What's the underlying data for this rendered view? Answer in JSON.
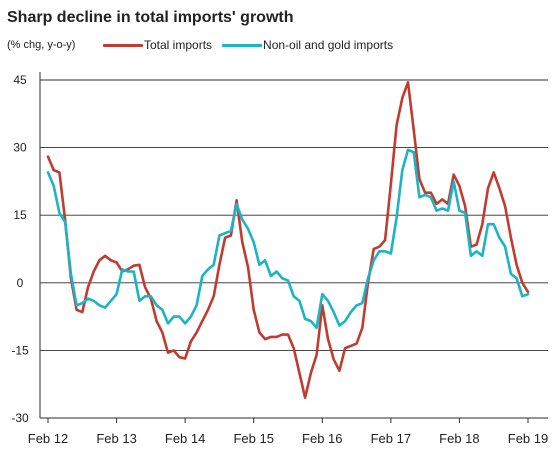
{
  "chart_data": {
    "type": "line",
    "title": "Sharp decline in total imports' growth",
    "subtitle": "(% chg, y-o-y)",
    "ylim": [
      -30,
      45
    ],
    "yticks": [
      45,
      30,
      15,
      0,
      -15,
      -30
    ],
    "xticks": [
      "Feb 12",
      "Feb 13",
      "Feb 14",
      "Feb 15",
      "Feb 16",
      "Feb 17",
      "Feb 18",
      "Feb 19"
    ],
    "grid": true,
    "legend": "top",
    "x": [
      "Feb 12",
      "Mar 12",
      "Apr 12",
      "May 12",
      "Jun 12",
      "Jul 12",
      "Aug 12",
      "Sep 12",
      "Oct 12",
      "Nov 12",
      "Dec 12",
      "Jan 13",
      "Feb 13",
      "Mar 13",
      "Apr 13",
      "May 13",
      "Jun 13",
      "Jul 13",
      "Aug 13",
      "Sep 13",
      "Oct 13",
      "Nov 13",
      "Dec 13",
      "Jan 14",
      "Feb 14",
      "Mar 14",
      "Apr 14",
      "May 14",
      "Jun 14",
      "Jul 14",
      "Aug 14",
      "Sep 14",
      "Oct 14",
      "Nov 14",
      "Dec 14",
      "Jan 15",
      "Feb 15",
      "Mar 15",
      "Apr 15",
      "May 15",
      "Jun 15",
      "Jul 15",
      "Aug 15",
      "Sep 15",
      "Oct 15",
      "Nov 15",
      "Dec 15",
      "Jan 16",
      "Feb 16",
      "Mar 16",
      "Apr 16",
      "May 16",
      "Jun 16",
      "Jul 16",
      "Aug 16",
      "Sep 16",
      "Oct 16",
      "Nov 16",
      "Dec 16",
      "Jan 17",
      "Feb 17",
      "Mar 17",
      "Apr 17",
      "May 17",
      "Jun 17",
      "Jul 17",
      "Aug 17",
      "Sep 17",
      "Oct 17",
      "Nov 17",
      "Dec 17",
      "Jan 18",
      "Feb 18",
      "Mar 18",
      "Apr 18",
      "May 18",
      "Jun 18",
      "Jul 18",
      "Aug 18",
      "Sep 18",
      "Oct 18",
      "Nov 18",
      "Dec 18",
      "Jan 19",
      "Feb 19"
    ],
    "series": [
      {
        "name": "Total imports",
        "color": "#c23b30",
        "values": [
          28,
          25,
          24.5,
          14,
          1,
          -6,
          -6.5,
          -1,
          2.5,
          5,
          6,
          5,
          4.5,
          2.5,
          3,
          3.8,
          4,
          -1,
          -3.5,
          -8.5,
          -11,
          -15.5,
          -15,
          -16.5,
          -16.8,
          -13,
          -11,
          -8.5,
          -6,
          -3,
          4,
          10,
          10.5,
          18.3,
          9,
          3.5,
          -6,
          -11,
          -12.5,
          -12,
          -12,
          -11.5,
          -11.5,
          -14.5,
          -20,
          -25.5,
          -20,
          -16,
          -5,
          -12.5,
          -17,
          -19.5,
          -14.5,
          -14,
          -13.5,
          -10,
          0,
          7.5,
          8,
          9.5,
          22,
          35,
          41,
          44.5,
          34,
          23,
          20,
          20,
          17.5,
          18.5,
          17.5,
          24,
          21.5,
          17,
          8,
          8.5,
          13,
          21,
          24.5,
          21,
          17,
          10,
          4,
          0,
          -2
        ]
      },
      {
        "name": "Non-oil and gold imports",
        "color": "#1bb4c6",
        "values": [
          24.5,
          21.5,
          15.5,
          13.5,
          2,
          -5,
          -4.5,
          -3.5,
          -4,
          -5,
          -5.5,
          -4,
          -2.5,
          3,
          2.5,
          2.5,
          -4,
          -3,
          -3,
          -5,
          -6,
          -9,
          -7.5,
          -7.5,
          -9,
          -7.5,
          -5,
          1.5,
          3,
          4,
          10.5,
          11,
          11.5,
          17.5,
          14,
          12,
          9,
          4,
          5,
          1.5,
          2.5,
          1,
          0.5,
          -3,
          -4,
          -8,
          -8.5,
          -10,
          -2.5,
          -4,
          -6.5,
          -9.5,
          -8.5,
          -6.5,
          -5,
          -4.5,
          1,
          5,
          7,
          7,
          6.5,
          14.5,
          25,
          29.5,
          29,
          19,
          19.5,
          19,
          16,
          16.5,
          16,
          22.5,
          16,
          15.5,
          6,
          7,
          6,
          13,
          13,
          10,
          8,
          2,
          1,
          -3,
          -2.5
        ]
      }
    ]
  }
}
